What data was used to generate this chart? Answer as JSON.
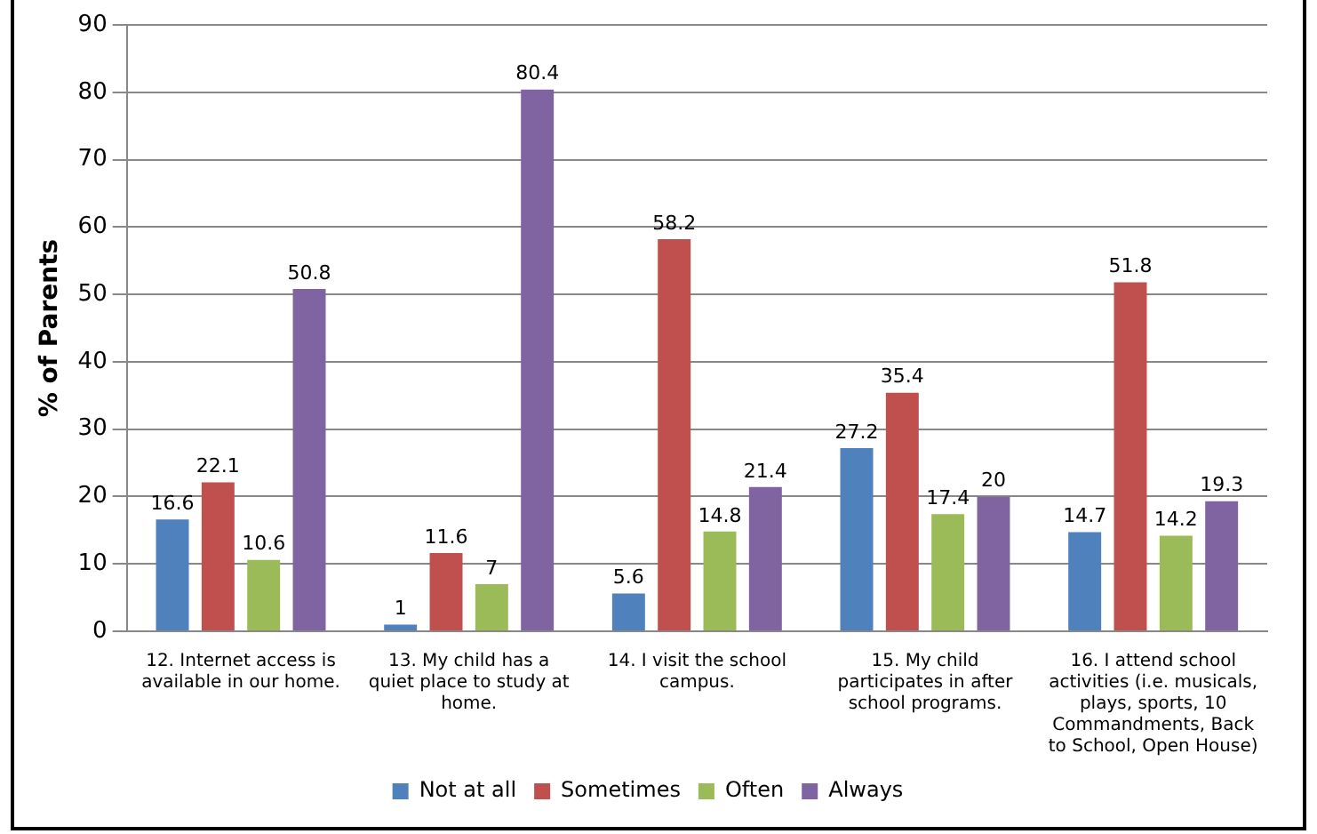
{
  "chart_data": {
    "type": "bar",
    "ylabel": "% of Parents",
    "categories": [
      "12. Internet access is available in our home.",
      "13. My child has a quiet place to study at home.",
      "14. I visit the school campus.",
      "15. My child participates in after school programs.",
      "16. I attend school activities (i.e. musicals, plays, sports, 10 Commandments, Back to School, Open House)"
    ],
    "series": [
      {
        "name": "Not at all",
        "color": "#4f81bd",
        "values": [
          16.6,
          1,
          5.6,
          27.2,
          14.7
        ]
      },
      {
        "name": "Sometimes",
        "color": "#c0504d",
        "values": [
          22.1,
          11.6,
          58.2,
          35.4,
          51.8
        ]
      },
      {
        "name": "Often",
        "color": "#9bbb59",
        "values": [
          10.6,
          7,
          14.8,
          17.4,
          14.2
        ]
      },
      {
        "name": "Always",
        "color": "#8064a2",
        "values": [
          50.8,
          80.4,
          21.4,
          20,
          19.3
        ]
      }
    ],
    "ylim": [
      0,
      90
    ],
    "yticks": [
      0,
      10,
      20,
      30,
      40,
      50,
      60,
      70,
      80,
      90
    ],
    "grid": "y",
    "legend": "bottom",
    "data_labels": true
  }
}
